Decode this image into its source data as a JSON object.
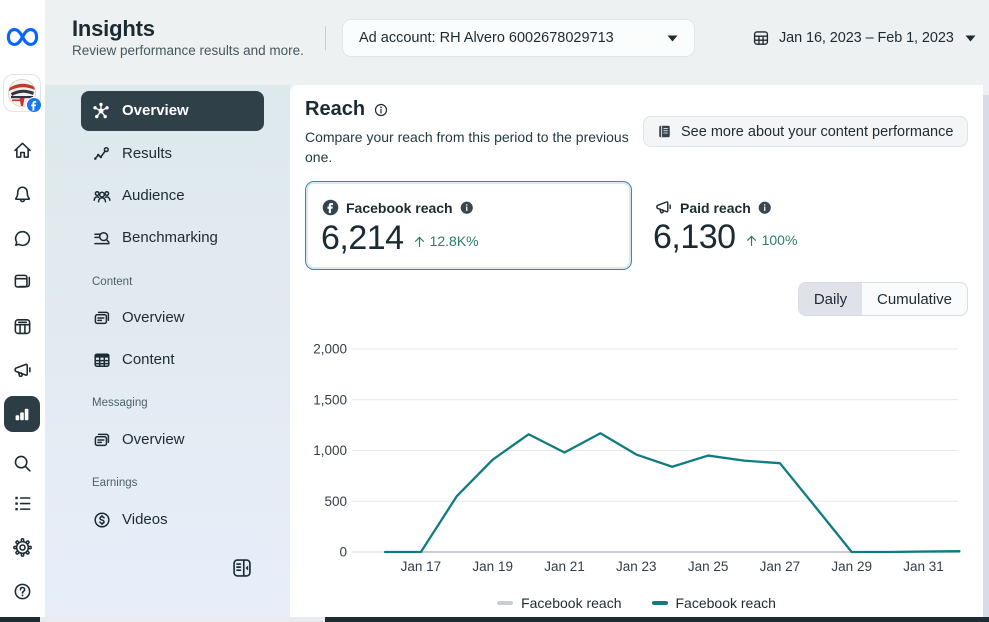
{
  "header": {
    "title": "Insights",
    "subtitle": "Review performance results and more.",
    "ad_account_label": "Ad account: RH Alvero 6002678029713",
    "date_range": "Jan 16, 2023 – Feb 1, 2023"
  },
  "rail_icons": [
    "meta-logo",
    "business-avatar",
    "home",
    "notifications",
    "inbox",
    "posts",
    "planner",
    "ads",
    "insights",
    "search",
    "tasks",
    "settings",
    "help"
  ],
  "sidebar": {
    "primary": [
      {
        "label": "Overview",
        "active": true
      },
      {
        "label": "Results",
        "active": false
      },
      {
        "label": "Audience",
        "active": false
      },
      {
        "label": "Benchmarking",
        "active": false
      }
    ],
    "sections": [
      {
        "title": "Content",
        "items": [
          {
            "label": "Overview"
          },
          {
            "label": "Content"
          }
        ]
      },
      {
        "title": "Messaging",
        "items": [
          {
            "label": "Overview"
          }
        ]
      },
      {
        "title": "Earnings",
        "items": [
          {
            "label": "Videos"
          }
        ]
      }
    ]
  },
  "main": {
    "reach_title": "Reach",
    "reach_description": "Compare your reach from this period to the previous one.",
    "see_more_button": "See more about your content performance",
    "metrics": [
      {
        "label": "Facebook reach",
        "value": "6,214",
        "delta": "12.8K%",
        "direction": "up",
        "selected": true
      },
      {
        "label": "Paid reach",
        "value": "6,130",
        "delta": "100%",
        "direction": "up",
        "selected": false
      }
    ],
    "toggle": {
      "options": [
        "Daily",
        "Cumulative"
      ],
      "selected": "Daily"
    }
  },
  "colors": {
    "accent_blue": "#0866ff",
    "line_teal": "#0f7c82",
    "prev_period_gray": "#c9ced3",
    "positive_green": "#2a7e68",
    "active_pill": "#304049"
  },
  "chart_data": {
    "type": "line",
    "x": [
      "Jan 16",
      "Jan 17",
      "Jan 18",
      "Jan 19",
      "Jan 20",
      "Jan 21",
      "Jan 22",
      "Jan 23",
      "Jan 24",
      "Jan 25",
      "Jan 26",
      "Jan 27",
      "Jan 28",
      "Jan 29",
      "Jan 30",
      "Jan 31",
      "Feb 1"
    ],
    "series": [
      {
        "name": "Facebook reach",
        "color": "#c9ced3",
        "values": [
          0,
          0,
          0,
          0,
          0,
          0,
          0,
          0,
          0,
          0,
          0,
          0,
          0,
          0,
          0,
          0,
          0
        ]
      },
      {
        "name": "Facebook reach",
        "color": "#0f7c82",
        "values": [
          0,
          0,
          550,
          910,
          1160,
          980,
          1170,
          960,
          840,
          950,
          900,
          875,
          440,
          0,
          0,
          5,
          8
        ]
      }
    ],
    "ylim": [
      0,
      2000
    ],
    "yticks": [
      {
        "value": 0,
        "label": "0"
      },
      {
        "value": 500,
        "label": "500"
      },
      {
        "value": 1000,
        "label": "1,000"
      },
      {
        "value": 1500,
        "label": "1,500"
      },
      {
        "value": 2000,
        "label": "2,000"
      }
    ],
    "xtick_indices": [
      1,
      3,
      5,
      7,
      9,
      11,
      13,
      15
    ],
    "grid": true,
    "legend_position": "bottom"
  }
}
